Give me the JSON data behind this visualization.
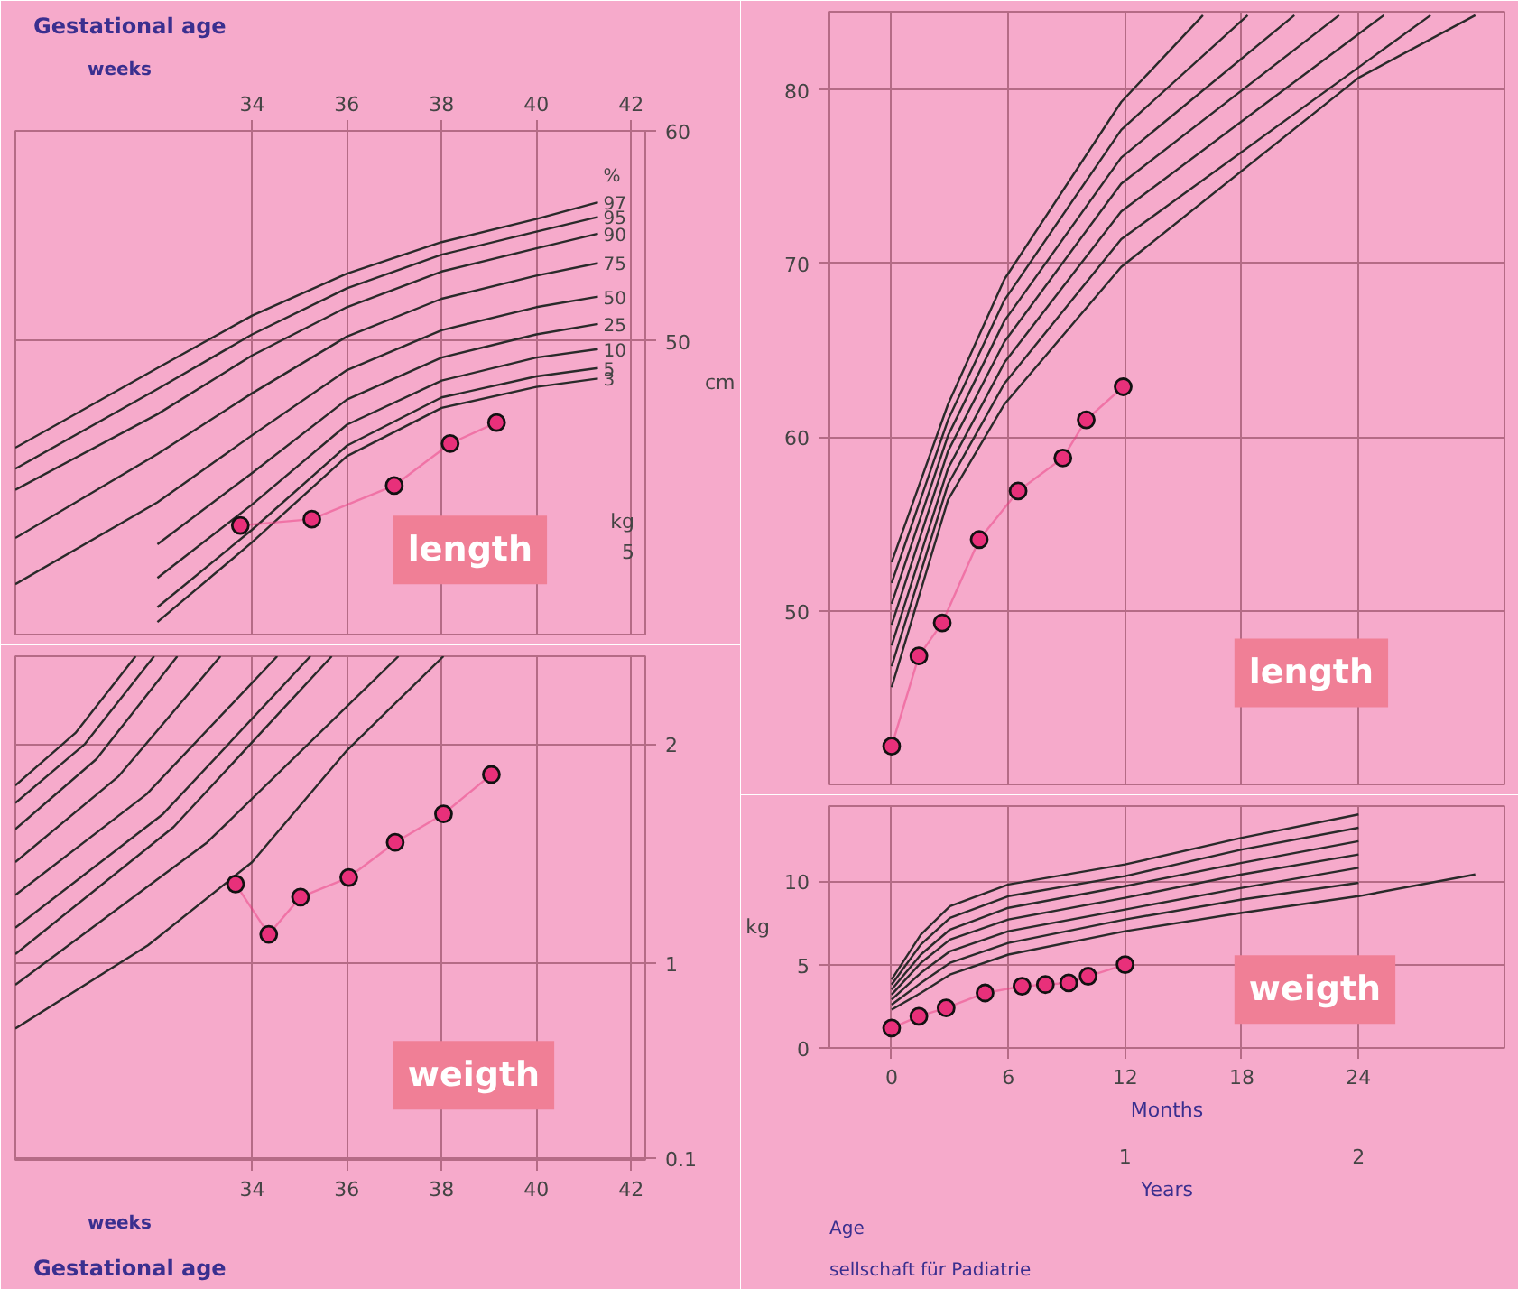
{
  "chart_data": [
    {
      "type": "line",
      "title": "length",
      "xlabel": "Gestational age",
      "subtitle": "weeks",
      "ylabel": "cm",
      "legend_title": "%",
      "annotations": [
        "kg",
        "5"
      ],
      "xlim": [
        29,
        42.3
      ],
      "xticks": [
        34,
        36,
        38,
        40,
        42
      ],
      "ylim": [
        36,
        60
      ],
      "yticks": [
        50,
        60
      ],
      "grid": true,
      "marker": "none",
      "series": [
        {
          "name": "97",
          "color": "#2a2a2a",
          "x": [
            29,
            32,
            34,
            36,
            38,
            40,
            41.3
          ],
          "values": [
            44.9,
            48.7,
            51.2,
            53.2,
            54.7,
            55.8,
            56.6
          ]
        },
        {
          "name": "95",
          "color": "#2a2a2a",
          "x": [
            29,
            32,
            34,
            36,
            38,
            40,
            41.3
          ],
          "values": [
            43.9,
            47.7,
            50.3,
            52.5,
            54.1,
            55.2,
            55.9
          ]
        },
        {
          "name": "90",
          "color": "#2a2a2a",
          "x": [
            29,
            32,
            34,
            36,
            38,
            40,
            41.3
          ],
          "values": [
            42.9,
            46.5,
            49.3,
            51.6,
            53.3,
            54.4,
            55.1
          ]
        },
        {
          "name": "75",
          "color": "#2a2a2a",
          "x": [
            29,
            32,
            34,
            36,
            38,
            40,
            41.3
          ],
          "values": [
            40.6,
            44.6,
            47.5,
            50.2,
            52.0,
            53.1,
            53.7
          ]
        },
        {
          "name": "50",
          "color": "#2a2a2a",
          "x": [
            29,
            32,
            34,
            36,
            38,
            40,
            41.3
          ],
          "values": [
            38.4,
            42.3,
            45.5,
            48.6,
            50.5,
            51.6,
            52.1
          ]
        },
        {
          "name": "25",
          "color": "#2a2a2a",
          "x": [
            32,
            34,
            36,
            38,
            40,
            41.3
          ],
          "values": [
            40.3,
            43.7,
            47.2,
            49.2,
            50.3,
            50.8
          ]
        },
        {
          "name": "10",
          "color": "#2a2a2a",
          "x": [
            32,
            34,
            36,
            38,
            40,
            41.3
          ],
          "values": [
            38.7,
            42.2,
            46.0,
            48.1,
            49.2,
            49.6
          ]
        },
        {
          "name": "5",
          "color": "#2a2a2a",
          "x": [
            32,
            34,
            36,
            38,
            40,
            41.3
          ],
          "values": [
            37.3,
            41.0,
            45.0,
            47.3,
            48.3,
            48.7
          ]
        },
        {
          "name": "3",
          "color": "#2a2a2a",
          "x": [
            32,
            34,
            36,
            38,
            40,
            41.3
          ],
          "values": [
            36.6,
            40.4,
            44.5,
            46.8,
            47.8,
            48.2
          ]
        },
        {
          "color": "#e8307a",
          "marker": "circle",
          "x": [
            33.75,
            35.26,
            37.0,
            38.18,
            39.16
          ],
          "values": [
            41.2,
            41.5,
            43.1,
            45.1,
            46.1
          ]
        }
      ]
    },
    {
      "type": "line",
      "title": "weigth",
      "xlabel": "Gestational age",
      "subtitle": "weeks",
      "xlim": [
        29,
        42.3
      ],
      "xticks": [
        34,
        36,
        38,
        40,
        42
      ],
      "ylim": [
        0.1,
        2.4
      ],
      "yticks": [
        {
          "value": 0.11,
          "label": "0.1"
        },
        1,
        2
      ],
      "grid": true,
      "marker": "none",
      "series": [
        {
          "color": "#2a2a2a",
          "x": [
            29,
            30.27,
            31.54
          ],
          "values": [
            1.81,
            2.05,
            2.4
          ]
        },
        {
          "color": "#2a2a2a",
          "x": [
            29,
            30.47,
            31.93
          ],
          "values": [
            1.73,
            2.0,
            2.4
          ]
        },
        {
          "color": "#2a2a2a",
          "x": [
            29,
            30.71,
            32.42
          ],
          "values": [
            1.61,
            1.93,
            2.4
          ]
        },
        {
          "color": "#2a2a2a",
          "x": [
            29,
            31.17,
            33.33
          ],
          "values": [
            1.46,
            1.85,
            2.4
          ]
        },
        {
          "color": "#2a2a2a",
          "x": [
            29,
            31.77,
            34.53
          ],
          "values": [
            1.31,
            1.77,
            2.4
          ]
        },
        {
          "color": "#2a2a2a",
          "x": [
            29,
            32.12,
            35.23
          ],
          "values": [
            1.16,
            1.68,
            2.4
          ]
        },
        {
          "color": "#2a2a2a",
          "x": [
            29,
            32.34,
            35.68
          ],
          "values": [
            1.04,
            1.62,
            2.4
          ]
        },
        {
          "color": "#2a2a2a",
          "x": [
            29,
            33.05,
            37.09
          ],
          "values": [
            0.9,
            1.55,
            2.4
          ]
        },
        {
          "color": "#2a2a2a",
          "x": [
            29,
            31.8,
            34,
            36,
            38.04
          ],
          "values": [
            0.7,
            1.08,
            1.46,
            1.97,
            2.4
          ]
        },
        {
          "color": "#e8307a",
          "marker": "circle",
          "x": [
            33.65,
            34.35,
            35.02,
            36.04,
            37.02,
            38.04,
            39.05
          ],
          "values": [
            1.36,
            1.13,
            1.3,
            1.39,
            1.55,
            1.68,
            1.86
          ]
        }
      ]
    },
    {
      "type": "line",
      "title": "length",
      "xlim": [
        -3.2,
        31.5
      ],
      "xticks": [
        0,
        6,
        12,
        18,
        24
      ],
      "ylim": [
        40,
        84.5
      ],
      "yticks": [
        50,
        60,
        70,
        80
      ],
      "grid": true,
      "tick_labels": "y",
      "marker": "none",
      "series": [
        {
          "color": "#2a2a2a",
          "x": [
            0,
            2.9,
            5.8,
            11.8,
            16
          ],
          "values": [
            52.8,
            61.9,
            69.1,
            79.3,
            84.3
          ]
        },
        {
          "color": "#2a2a2a",
          "x": [
            0,
            2.9,
            5.8,
            11.8,
            18.3
          ],
          "values": [
            51.6,
            61.0,
            67.9,
            77.7,
            84.3
          ]
        },
        {
          "color": "#2a2a2a",
          "x": [
            0,
            2.9,
            5.8,
            11.8,
            20.7
          ],
          "values": [
            50.4,
            60.1,
            66.7,
            76.1,
            84.3
          ]
        },
        {
          "color": "#2a2a2a",
          "x": [
            0,
            2.9,
            5.8,
            11.8,
            23
          ],
          "values": [
            49.2,
            59.2,
            65.5,
            74.6,
            84.3
          ]
        },
        {
          "color": "#2a2a2a",
          "x": [
            0,
            2.9,
            5.8,
            11.8,
            25.3
          ],
          "values": [
            48.0,
            58.2,
            64.3,
            73.0,
            84.3
          ]
        },
        {
          "color": "#2a2a2a",
          "x": [
            0,
            2.9,
            5.8,
            11.8,
            27.7
          ],
          "values": [
            46.8,
            57.3,
            63.1,
            71.4,
            84.3
          ]
        },
        {
          "color": "#2a2a2a",
          "x": [
            0,
            2.9,
            5.8,
            11.8,
            24,
            30
          ],
          "values": [
            45.6,
            56.4,
            61.9,
            69.8,
            80.7,
            84.3
          ]
        },
        {
          "color": "#e8307a",
          "marker": "circle",
          "x": [
            0,
            1.4,
            2.6,
            4.5,
            6.5,
            8.8,
            10.0,
            11.9
          ],
          "values": [
            42.2,
            47.4,
            49.3,
            54.1,
            56.9,
            58.8,
            61.0,
            62.9
          ]
        }
      ]
    },
    {
      "type": "line",
      "title": "weigth",
      "xlabel": "Months",
      "x2label": "Years",
      "ylabel": "kg",
      "annotations": [
        "Age",
        "sellschaft für Padiatrie"
      ],
      "xlim": [
        -3.2,
        31.5
      ],
      "xticks": [
        0,
        6,
        12,
        18,
        24
      ],
      "x2lim": [
        -0.2667,
        2.625
      ],
      "x2ticks": [
        1,
        2
      ],
      "ylim": [
        0,
        14.5
      ],
      "yticks": [
        0,
        5,
        10
      ],
      "grid": true,
      "marker": "none",
      "series": [
        {
          "color": "#2a2a2a",
          "x": [
            0,
            1.5,
            3,
            6,
            12,
            18,
            24
          ],
          "values": [
            4.1,
            6.8,
            8.5,
            9.8,
            11.0,
            12.6,
            14.0
          ]
        },
        {
          "color": "#2a2a2a",
          "x": [
            0,
            1.5,
            3,
            6,
            12,
            18,
            24
          ],
          "values": [
            3.8,
            6.2,
            7.8,
            9.1,
            10.3,
            11.9,
            13.2
          ]
        },
        {
          "color": "#2a2a2a",
          "x": [
            0,
            1.5,
            3,
            6,
            12,
            18,
            24
          ],
          "values": [
            3.5,
            5.6,
            7.1,
            8.4,
            9.7,
            11.1,
            12.4
          ]
        },
        {
          "color": "#2a2a2a",
          "x": [
            0,
            1.5,
            3,
            6,
            12,
            18,
            24
          ],
          "values": [
            3.2,
            5.1,
            6.5,
            7.7,
            9.0,
            10.4,
            11.6
          ]
        },
        {
          "color": "#2a2a2a",
          "x": [
            0,
            1.5,
            3,
            6,
            12,
            18,
            24
          ],
          "values": [
            2.9,
            4.5,
            5.8,
            7.0,
            8.3,
            9.6,
            10.8
          ]
        },
        {
          "color": "#2a2a2a",
          "x": [
            0,
            1.5,
            3,
            6,
            12,
            18,
            24
          ],
          "values": [
            2.6,
            3.9,
            5.1,
            6.3,
            7.7,
            8.9,
            9.9
          ]
        },
        {
          "color": "#2a2a2a",
          "x": [
            0,
            1.5,
            3,
            6,
            12,
            18,
            24,
            30
          ],
          "values": [
            2.3,
            3.3,
            4.4,
            5.6,
            7.0,
            8.1,
            9.1,
            10.4
          ]
        },
        {
          "color": "#e8307a",
          "marker": "circle",
          "x": [
            0,
            1.4,
            2.8,
            4.8,
            6.7,
            7.9,
            9.1,
            10.1,
            12.0
          ],
          "values": [
            1.2,
            1.9,
            2.4,
            3.3,
            3.7,
            3.8,
            3.9,
            4.3,
            5.0
          ]
        }
      ]
    }
  ]
}
